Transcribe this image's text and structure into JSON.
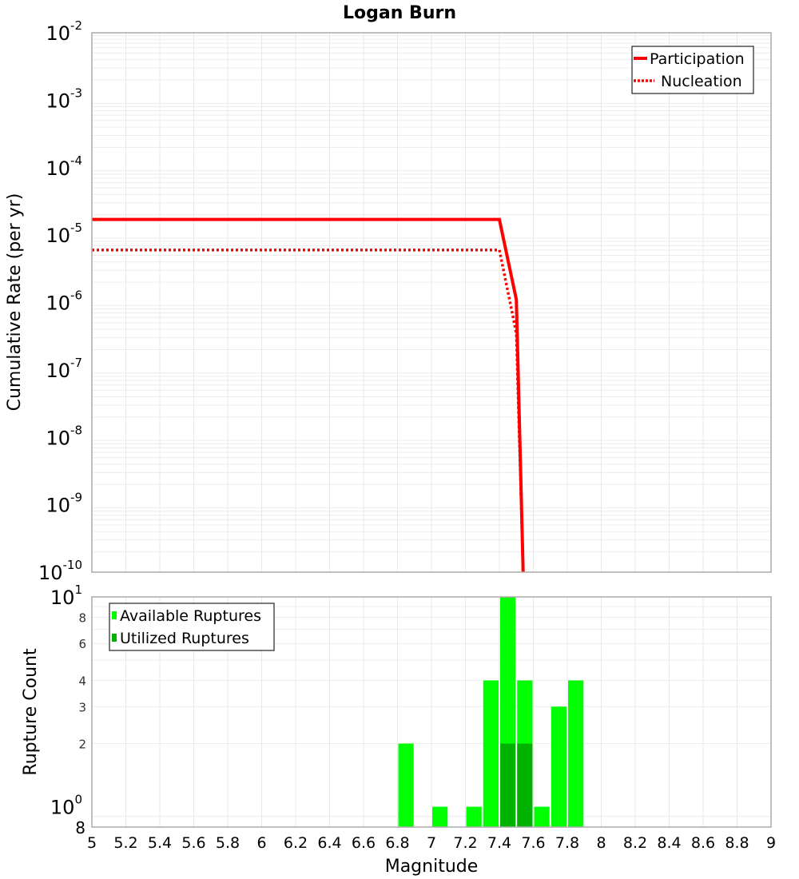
{
  "chart_data": [
    {
      "type": "line",
      "title": "Logan Burn",
      "xlabel": "Magnitude",
      "ylabel": "Cumulative Rate (per yr)",
      "yscale": "log",
      "xlim": [
        5,
        9
      ],
      "ylim": [
        1e-10,
        0.01
      ],
      "grid": true,
      "legend_position": "upper right",
      "y_tick_labels": [
        "10^-2",
        "10^-3",
        "10^-4",
        "10^-5",
        "10^-6",
        "10^-7",
        "10^-8",
        "10^-9",
        "10^-10"
      ],
      "series": [
        {
          "name": "Participation",
          "style": "solid",
          "color": "#ff0000",
          "x": [
            5.0,
            7.4,
            7.5,
            7.54
          ],
          "y": [
            1.7e-05,
            1.7e-05,
            1.1e-06,
            1e-10
          ]
        },
        {
          "name": "Nucleation",
          "style": "dotted",
          "color": "#ff0000",
          "x": [
            5.0,
            7.4,
            7.5,
            7.54
          ],
          "y": [
            6e-06,
            6e-06,
            3.5e-07,
            1e-10
          ]
        }
      ]
    },
    {
      "type": "bar",
      "title": "",
      "xlabel": "Magnitude",
      "ylabel": "Rupture Count",
      "yscale": "log",
      "xlim": [
        5,
        9
      ],
      "ylim": [
        0.8,
        10
      ],
      "grid": true,
      "legend_position": "upper left",
      "x_tick_labels": [
        "5",
        "5.2",
        "5.4",
        "5.6",
        "5.8",
        "6",
        "6.2",
        "6.4",
        "6.6",
        "6.8",
        "7",
        "7.2",
        "7.4",
        "7.6",
        "7.8",
        "8",
        "8.2",
        "8.4",
        "8.6",
        "8.8",
        "9"
      ],
      "y_tick_labels": [
        "10^1",
        "8",
        "6",
        "4",
        "3",
        "2",
        "10^0",
        "8"
      ],
      "categories": [
        6.85,
        7.05,
        7.25,
        7.35,
        7.45,
        7.55,
        7.65,
        7.75,
        7.85
      ],
      "series": [
        {
          "name": "Available Ruptures",
          "color": "#00ff00",
          "values": [
            2,
            1,
            1,
            4,
            10,
            4,
            1,
            3,
            4
          ]
        },
        {
          "name": "Utilized Ruptures",
          "color": "#00b200",
          "values": [
            0,
            0,
            0,
            0,
            2,
            2,
            0,
            0,
            0
          ]
        }
      ]
    }
  ],
  "labels": {
    "title": "Logan Burn",
    "top_ylabel": "Cumulative Rate (per yr)",
    "bottom_ylabel": "Rupture Count",
    "xlabel": "Magnitude",
    "legend_top": [
      "Participation",
      "Nucleation"
    ],
    "legend_bottom": [
      "Available Ruptures",
      "Utilized Ruptures"
    ]
  }
}
